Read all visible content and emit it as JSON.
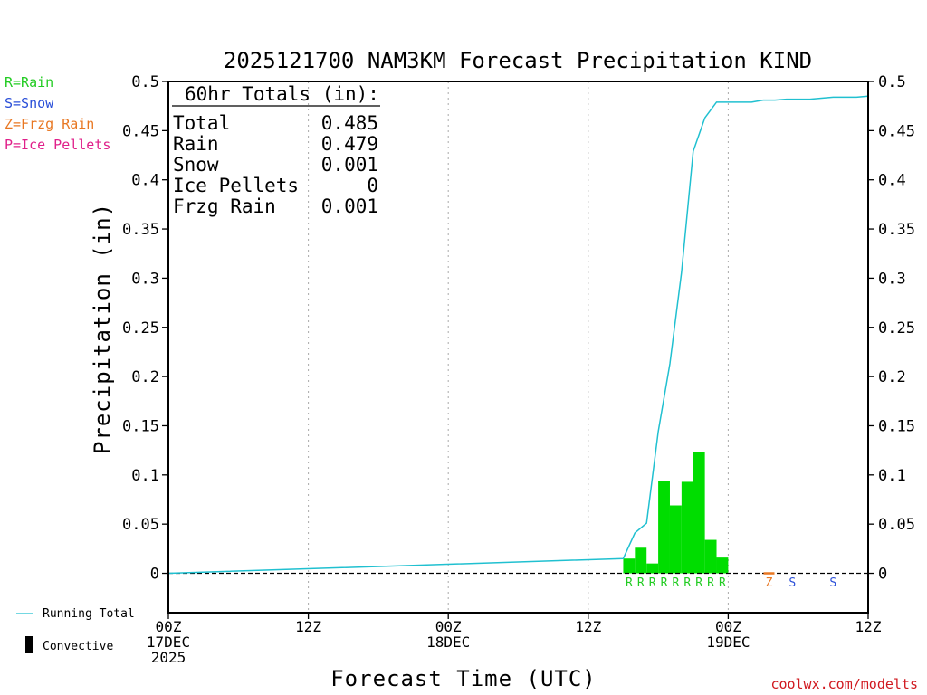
{
  "chart_data": {
    "type": "bar",
    "title": "2025121700 NAM3KM Forecast Precipitation KIND",
    "xlabel": "Forecast Time (UTC)",
    "ylabel": "Precipitation (in)",
    "ylim": [
      -0.04,
      0.5
    ],
    "yticks": [
      "0.5",
      "0.45",
      "0.4",
      "0.35",
      "0.3",
      "0.25",
      "0.2",
      "0.15",
      "0.1",
      "0.05",
      "0"
    ],
    "xlim_hours": [
      0,
      60
    ],
    "xticks": [
      {
        "hour": 0,
        "lines": [
          "00Z",
          "17DEC",
          "2025"
        ]
      },
      {
        "hour": 12,
        "lines": [
          "12Z"
        ]
      },
      {
        "hour": 24,
        "lines": [
          "00Z",
          "18DEC"
        ]
      },
      {
        "hour": 36,
        "lines": [
          "12Z"
        ]
      },
      {
        "hour": 48,
        "lines": [
          "00Z",
          "19DEC"
        ]
      },
      {
        "hour": 60,
        "lines": [
          "12Z"
        ]
      }
    ],
    "grid_hours": [
      12,
      24,
      36,
      48
    ],
    "bar_hours": [
      39.5,
      40.5,
      41.5,
      42.5,
      43.5,
      44.5,
      45.5,
      46.5,
      47.5
    ],
    "bar_values": [
      0.015,
      0.026,
      0.01,
      0.094,
      0.069,
      0.093,
      0.123,
      0.034,
      0.016
    ],
    "bar_color": "#00dd00",
    "running_total": {
      "name": "Running Total",
      "color": "#20c0d0",
      "hours": [
        0,
        39,
        40,
        41,
        42,
        43,
        44,
        45,
        46,
        47,
        48,
        49,
        50,
        51,
        52,
        53,
        54,
        55,
        56,
        57,
        58,
        59,
        60
      ],
      "values": [
        0,
        0.015,
        0.041,
        0.051,
        0.144,
        0.213,
        0.306,
        0.429,
        0.463,
        0.479,
        0.479,
        0.479,
        0.479,
        0.481,
        0.481,
        0.482,
        0.482,
        0.482,
        0.483,
        0.484,
        0.484,
        0.484,
        0.485
      ]
    },
    "ptype_marks": [
      {
        "hour": 39.5,
        "code": "R",
        "color": "#22cc22"
      },
      {
        "hour": 40.5,
        "code": "R",
        "color": "#22cc22"
      },
      {
        "hour": 41.5,
        "code": "R",
        "color": "#22cc22"
      },
      {
        "hour": 42.5,
        "code": "R",
        "color": "#22cc22"
      },
      {
        "hour": 43.5,
        "code": "R",
        "color": "#22cc22"
      },
      {
        "hour": 44.5,
        "code": "R",
        "color": "#22cc22"
      },
      {
        "hour": 45.5,
        "code": "R",
        "color": "#22cc22"
      },
      {
        "hour": 46.5,
        "code": "R",
        "color": "#22cc22"
      },
      {
        "hour": 47.5,
        "code": "R",
        "color": "#22cc22"
      },
      {
        "hour": 51.5,
        "code": "Z",
        "color": "#e87722"
      },
      {
        "hour": 53.5,
        "code": "S",
        "color": "#2a4fd8"
      },
      {
        "hour": 57,
        "code": "S",
        "color": "#2a4fd8"
      }
    ],
    "frzg_dash": {
      "hour": 51.5,
      "color": "#e87722"
    },
    "legend_placement": "top-left"
  },
  "totals": {
    "heading": "60hr Totals (in):",
    "rows": [
      {
        "label": "Total",
        "value": "0.485"
      },
      {
        "label": "Rain",
        "value": "0.479"
      },
      {
        "label": "Snow",
        "value": "0.001"
      },
      {
        "label": "Ice Pellets",
        "value": "0"
      },
      {
        "label": "Frzg Rain",
        "value": "0.001"
      }
    ]
  },
  "ptype_legend": [
    {
      "text": "R=Rain",
      "color": "#22cc22"
    },
    {
      "text": "S=Snow",
      "color": "#2a4fd8"
    },
    {
      "text": "Z=Frzg Rain",
      "color": "#e87722"
    },
    {
      "text": "P=Ice Pellets",
      "color": "#e0208a"
    }
  ],
  "bottom_legend": {
    "running_total": "Running Total",
    "convective": "Convective"
  },
  "credit": "coolwx.com/modelts"
}
